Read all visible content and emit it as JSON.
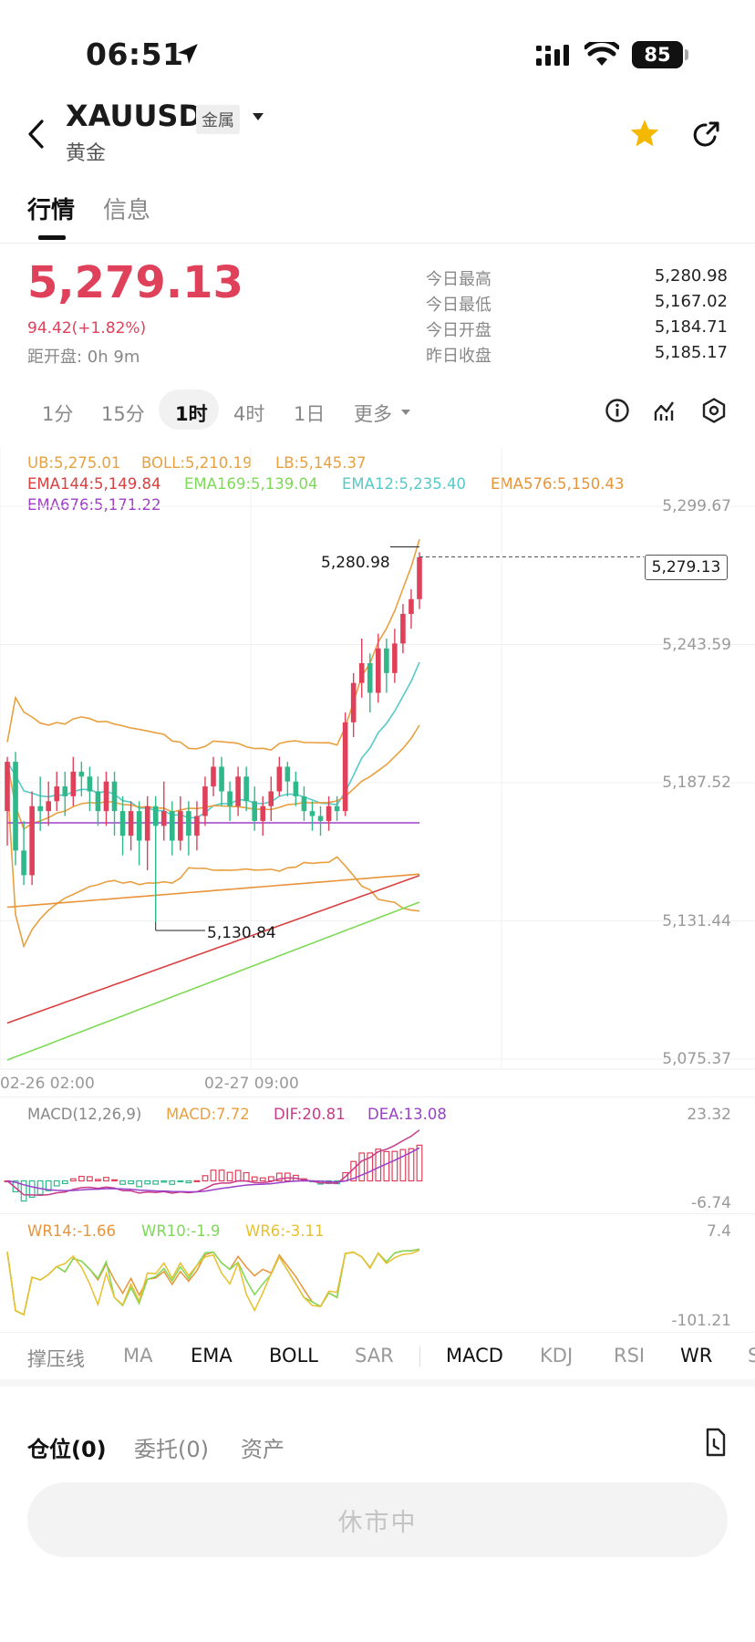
{
  "status_bar": {
    "time": "06:51",
    "battery": "85",
    "icons": [
      "location-arrow-icon",
      "signal-icon",
      "wifi-icon",
      "battery-icon"
    ]
  },
  "header": {
    "symbol": "XAUUSD",
    "category_tag": "金属",
    "name": "黄金",
    "back_icon": "chevron-left-icon",
    "favorite_icon": "star-icon",
    "share_icon": "share-icon",
    "favorite_color": "#f5b800"
  },
  "tabs": [
    {
      "label": "行情",
      "active": true
    },
    {
      "label": "信息",
      "active": false
    }
  ],
  "quote": {
    "price": "5,279.13",
    "change": "94.42(+1.82%)",
    "countdown": "距开盘: 0h 9m",
    "price_color": "#e0415a",
    "stats": [
      {
        "label": "今日最高",
        "value": "5,280.98"
      },
      {
        "label": "今日最低",
        "value": "5,167.02"
      },
      {
        "label": "今日开盘",
        "value": "5,184.71"
      },
      {
        "label": "昨日收盘",
        "value": "5,185.17"
      }
    ]
  },
  "timeframes": [
    {
      "label": "1分"
    },
    {
      "label": "15分"
    },
    {
      "label": "1时",
      "active": true
    },
    {
      "label": "4时"
    },
    {
      "label": "1日"
    },
    {
      "label": "更多"
    }
  ],
  "toolbar_icons": [
    "info-icon",
    "draw-tool-icon",
    "settings-icon"
  ],
  "indicators": {
    "ub": "UB:5,275.01",
    "boll": "BOLL:5,210.19",
    "lb": "LB:5,145.37",
    "ema144": "EMA144:5,149.84",
    "ema169": "EMA169:5,139.04",
    "ema12": "EMA12:5,235.40",
    "ema576": "EMA576:5,150.43",
    "ema676": "EMA676:5,171.22"
  },
  "colors": {
    "up": "#e0415a",
    "down": "#2fb98a",
    "boll": "#e8a040",
    "ema144": "#d94040",
    "ema169": "#7ed957",
    "ema12": "#56c9c9",
    "ema576": "#e8943a",
    "ema676": "#a040c8",
    "macd": "#e8a040",
    "dif": "#c83a8a",
    "dea": "#9a40c8",
    "wr14": "#e8943a",
    "wr10": "#7ed957",
    "wr6": "#e8c030"
  },
  "chart_data": {
    "type": "candlestick",
    "x_labels": [
      "02-26 02:00",
      "02-27 09:00"
    ],
    "y_ticks": [
      5299.67,
      5243.59,
      5187.52,
      5131.44,
      5075.37
    ],
    "y_tick_labels": [
      "5,299.67",
      "5,243.59",
      "5,187.52",
      "5,131.44",
      "5,075.37"
    ],
    "ylim": [
      5075.37,
      5299.67
    ],
    "current_price": "5,279.13",
    "high_marker": "5,280.98",
    "low_marker": "5,130.84",
    "candles": [
      [
        5176,
        5196,
        5162,
        5198
      ],
      [
        5196,
        5160,
        5154,
        5200
      ],
      [
        5160,
        5150,
        5146,
        5172
      ],
      [
        5150,
        5178,
        5146,
        5184
      ],
      [
        5178,
        5176,
        5168,
        5190
      ],
      [
        5176,
        5180,
        5170,
        5188
      ],
      [
        5180,
        5186,
        5176,
        5192
      ],
      [
        5186,
        5182,
        5174,
        5192
      ],
      [
        5182,
        5192,
        5178,
        5198
      ],
      [
        5192,
        5190,
        5182,
        5196
      ],
      [
        5190,
        5184,
        5176,
        5194
      ],
      [
        5184,
        5176,
        5170,
        5190
      ],
      [
        5176,
        5188,
        5170,
        5192
      ],
      [
        5188,
        5176,
        5166,
        5192
      ],
      [
        5176,
        5166,
        5158,
        5182
      ],
      [
        5166,
        5176,
        5160,
        5180
      ],
      [
        5176,
        5164,
        5154,
        5180
      ],
      [
        5164,
        5178,
        5152,
        5182
      ],
      [
        5178,
        5170,
        5131,
        5182
      ],
      [
        5170,
        5176,
        5164,
        5188
      ],
      [
        5176,
        5164,
        5158,
        5180
      ],
      [
        5164,
        5176,
        5160,
        5182
      ],
      [
        5176,
        5166,
        5158,
        5180
      ],
      [
        5166,
        5174,
        5160,
        5180
      ],
      [
        5174,
        5186,
        5170,
        5190
      ],
      [
        5186,
        5194,
        5182,
        5198
      ],
      [
        5194,
        5184,
        5178,
        5198
      ],
      [
        5184,
        5178,
        5172,
        5188
      ],
      [
        5178,
        5190,
        5174,
        5194
      ],
      [
        5190,
        5180,
        5176,
        5194
      ],
      [
        5180,
        5172,
        5168,
        5186
      ],
      [
        5172,
        5178,
        5166,
        5182
      ],
      [
        5178,
        5184,
        5172,
        5190
      ],
      [
        5184,
        5194,
        5182,
        5198
      ],
      [
        5194,
        5188,
        5182,
        5196
      ],
      [
        5188,
        5182,
        5178,
        5192
      ],
      [
        5182,
        5176,
        5172,
        5186
      ],
      [
        5176,
        5174,
        5168,
        5180
      ],
      [
        5174,
        5172,
        5166,
        5178
      ],
      [
        5172,
        5178,
        5168,
        5182
      ],
      [
        5178,
        5176,
        5172,
        5182
      ],
      [
        5176,
        5212,
        5174,
        5216
      ],
      [
        5212,
        5228,
        5206,
        5232
      ],
      [
        5228,
        5236,
        5222,
        5246
      ],
      [
        5236,
        5224,
        5216,
        5240
      ],
      [
        5224,
        5242,
        5220,
        5248
      ],
      [
        5242,
        5232,
        5224,
        5246
      ],
      [
        5232,
        5244,
        5228,
        5250
      ],
      [
        5244,
        5256,
        5240,
        5260
      ],
      [
        5256,
        5262,
        5250,
        5266
      ],
      [
        5262,
        5279,
        5258,
        5281
      ]
    ]
  },
  "macd": {
    "label": "MACD(12,26,9)",
    "macd": "MACD:7.72",
    "dif": "DIF:20.81",
    "dea": "DEA:13.08",
    "top": "23.32",
    "bottom": "-6.74"
  },
  "wr": {
    "wr14": "WR14:-1.66",
    "wr10": "WR10:-1.9",
    "wr6": "WR6:-3.11",
    "top": "7.4",
    "bottom": "-101.21"
  },
  "indicator_bar": [
    {
      "label": "撑压线",
      "active": false
    },
    {
      "label": "MA",
      "active": false
    },
    {
      "label": "EMA",
      "active": true
    },
    {
      "label": "BOLL",
      "active": true
    },
    {
      "label": "SAR",
      "active": false
    },
    {
      "label": "MACD",
      "active": true
    },
    {
      "label": "KDJ",
      "active": false
    },
    {
      "label": "RSI",
      "active": false
    },
    {
      "label": "WR",
      "active": true
    },
    {
      "label": "S",
      "active": false
    }
  ],
  "position_tabs": [
    {
      "label": "仓位(0)",
      "active": true
    },
    {
      "label": "委托(0)",
      "active": false
    },
    {
      "label": "资产",
      "active": false
    }
  ],
  "position_icon": "history-icon",
  "action_button": "休市中"
}
